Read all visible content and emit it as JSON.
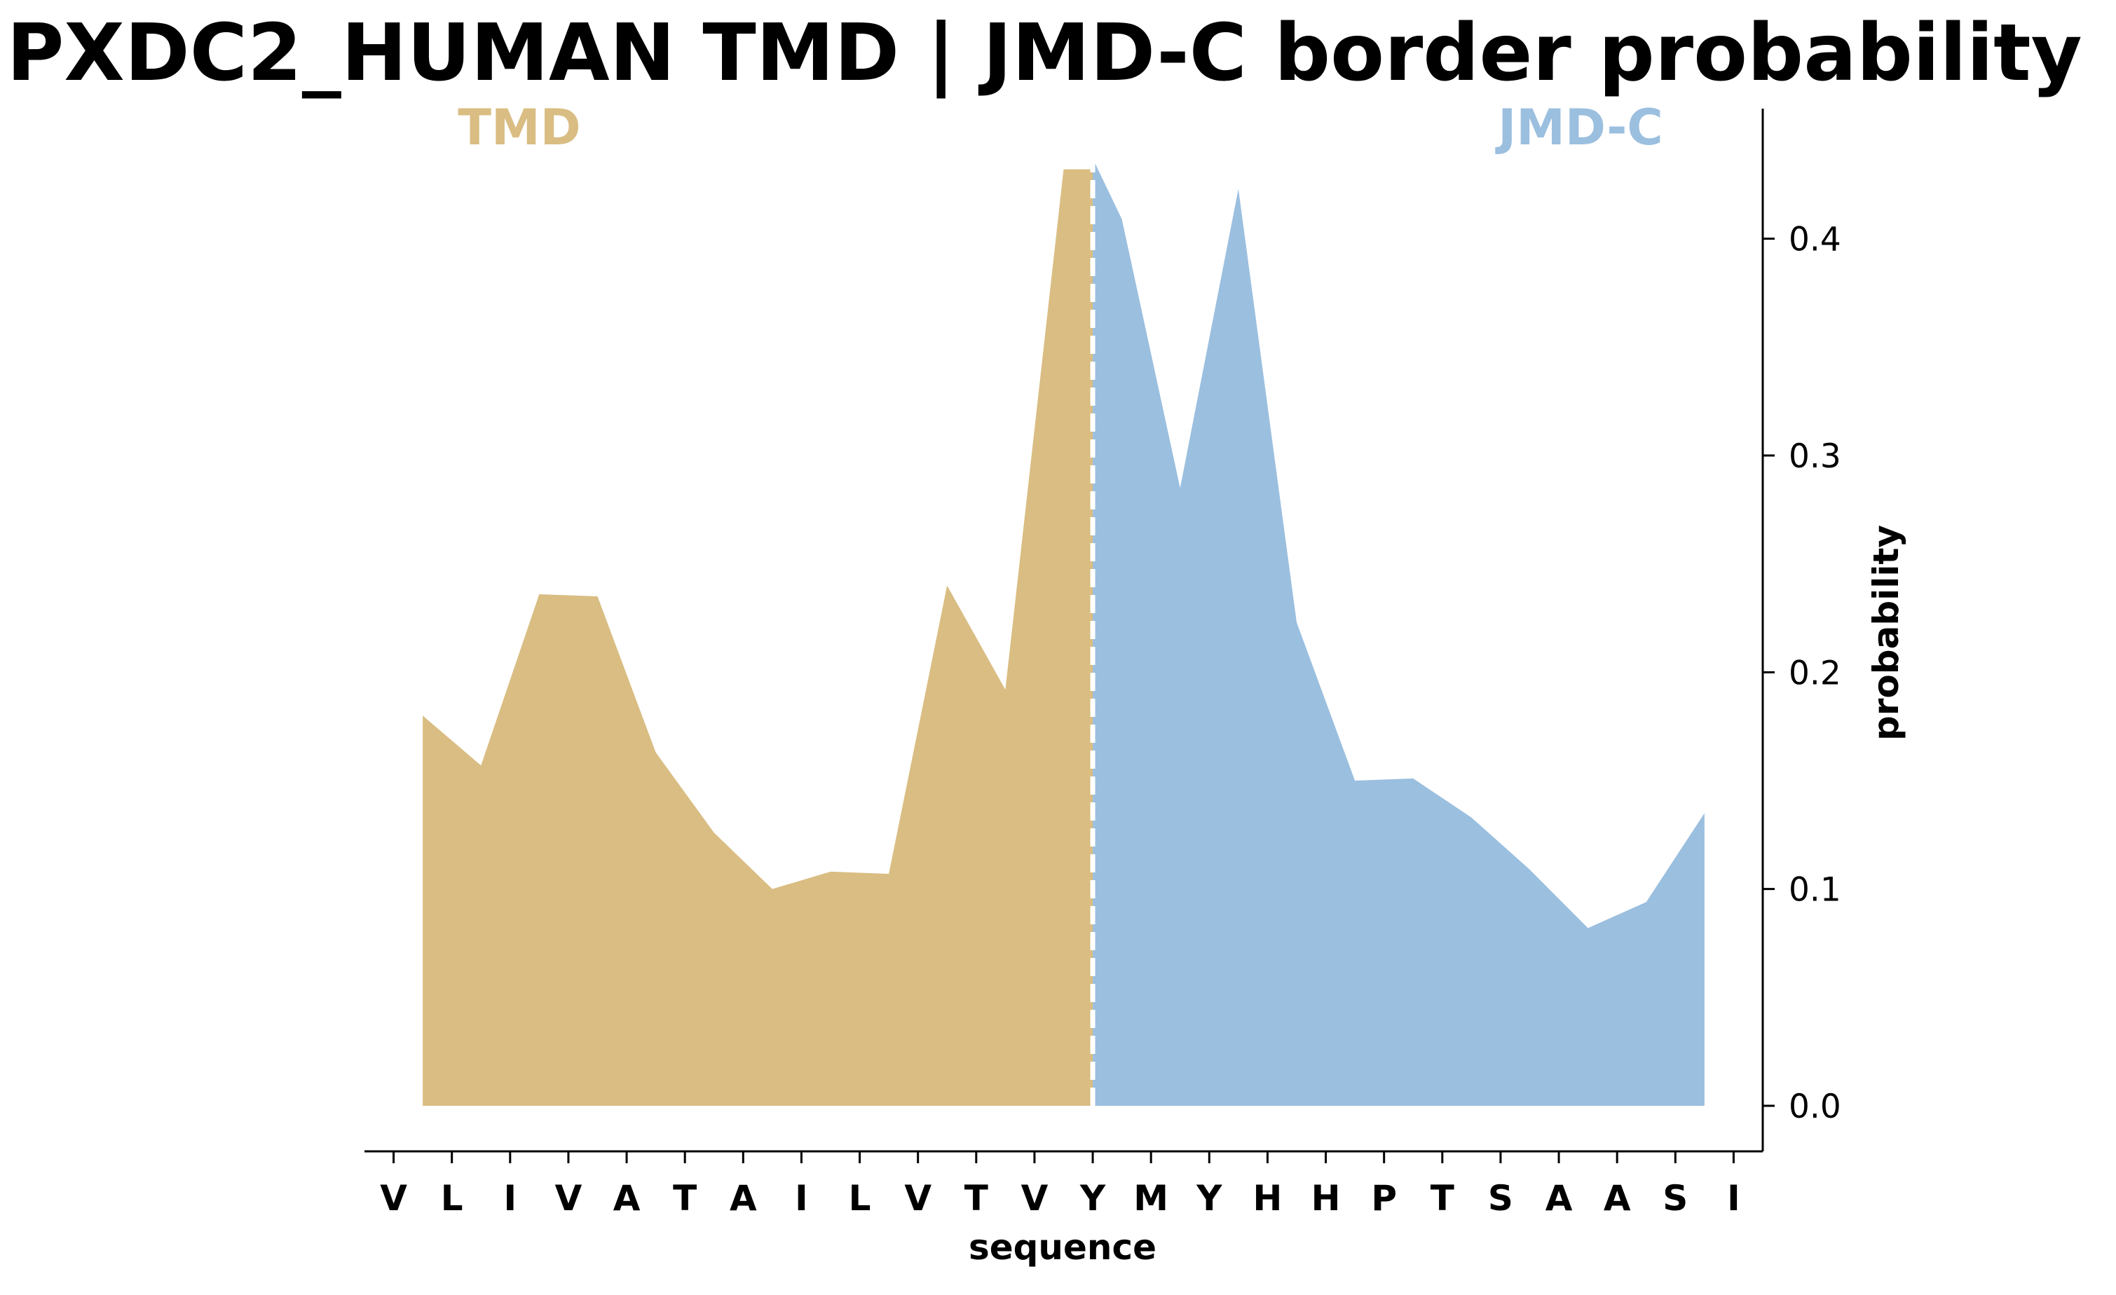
{
  "chart_data": {
    "type": "area",
    "title": "PXDC2_HUMAN TMD | JMD-C border probability",
    "xlabel": "sequence",
    "ylabel": "probability",
    "ylim": [
      -0.021,
      0.46
    ],
    "yticks": [
      0.0,
      0.1,
      0.2,
      0.3,
      0.4
    ],
    "ytick_labels": [
      "0.0",
      "0.1",
      "0.2",
      "0.3",
      "0.4"
    ],
    "y_axis_side": "right",
    "grid": false,
    "categories": [
      "V",
      "L",
      "I",
      "V",
      "A",
      "T",
      "A",
      "I",
      "L",
      "V",
      "T",
      "V",
      "Y",
      "M",
      "Y",
      "H",
      "H",
      "P",
      "T",
      "S",
      "A",
      "A",
      "S",
      "I"
    ],
    "x": [
      0.5,
      1.5,
      2.5,
      3.5,
      4.5,
      5.5,
      6.5,
      7.5,
      8.5,
      9.5,
      10.5,
      11.5,
      12.0,
      12.5,
      13.5,
      14.5,
      15.5,
      16.5,
      17.5,
      18.5,
      19.5,
      20.5,
      21.5,
      22.5
    ],
    "boundary_x": 12,
    "series": [
      {
        "name": "TMD",
        "color": "#d9bd82",
        "x": [
          0.5,
          1.5,
          2.5,
          3.5,
          4.5,
          5.5,
          6.5,
          7.5,
          8.5,
          9.5,
          10.5,
          11.5,
          12.0
        ],
        "values": [
          0.18,
          0.157,
          0.236,
          0.235,
          0.163,
          0.126,
          0.1,
          0.108,
          0.107,
          0.24,
          0.192,
          0.432,
          0.432
        ]
      },
      {
        "name": "JMD-C",
        "color": "#9bbfdf",
        "x": [
          12.0,
          12.5,
          13.5,
          14.5,
          15.5,
          16.5,
          17.5,
          18.5,
          19.5,
          20.5,
          21.5,
          22.5
        ],
        "values": [
          0.437,
          0.409,
          0.285,
          0.423,
          0.223,
          0.15,
          0.151,
          0.133,
          0.109,
          0.082,
          0.094,
          0.135
        ]
      }
    ],
    "annotations": [
      {
        "text": "TMD",
        "color": "#d9bd82"
      },
      {
        "text": "JMD-C",
        "color": "#9bbfdf"
      }
    ]
  }
}
